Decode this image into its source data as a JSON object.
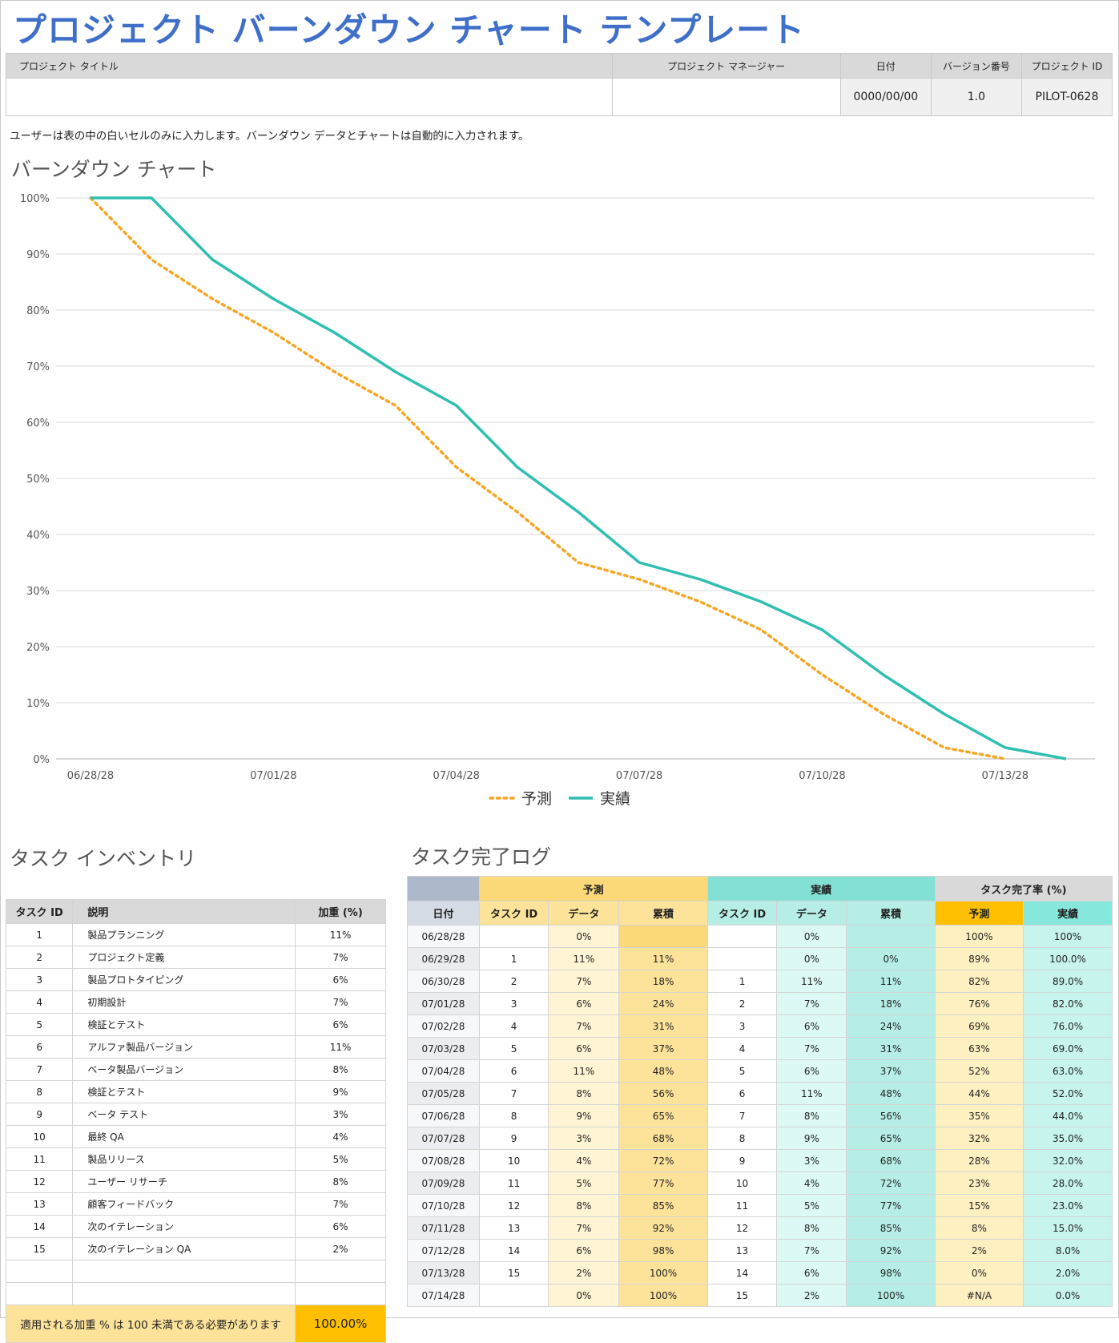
{
  "title": "プロジェクト バーンダウン チャート テンプレート",
  "info": {
    "headers": [
      "プロジェクト タイトル",
      "プロジェクト マネージャー",
      "日付",
      "バージョン番号",
      "プロジェクト ID"
    ],
    "values": [
      "",
      "",
      "0000/00/00",
      "1.0",
      "PILOT-0628"
    ]
  },
  "note": "ユーザーは表の中の白いセルのみに入力します。バーンダウン データとチャートは自動的に入力されます。",
  "chart_section": "バーンダウン チャート",
  "chart_data": {
    "type": "line",
    "x": [
      "06/28/28",
      "06/29/28",
      "06/30/28",
      "07/01/28",
      "07/02/28",
      "07/03/28",
      "07/04/28",
      "07/05/28",
      "07/06/28",
      "07/07/28",
      "07/08/28",
      "07/09/28",
      "07/10/28",
      "07/11/28",
      "07/12/28",
      "07/13/28",
      "07/14/28"
    ],
    "x_tick_labels": [
      "06/28/28",
      "07/01/28",
      "07/04/28",
      "07/07/28",
      "07/10/28",
      "07/13/28"
    ],
    "y_tick_labels": [
      "0%",
      "10%",
      "20%",
      "30%",
      "40%",
      "50%",
      "60%",
      "70%",
      "80%",
      "90%",
      "100%"
    ],
    "ylim": [
      0,
      100
    ],
    "grid": true,
    "legend_position": "bottom",
    "series": [
      {
        "name": "予測",
        "style": "dotted",
        "color": "#f5a623",
        "values": [
          100,
          89,
          82,
          76,
          69,
          63,
          52,
          44,
          35,
          32,
          28,
          23,
          15,
          8,
          2,
          0,
          null
        ]
      },
      {
        "name": "実績",
        "style": "solid",
        "color": "#2fbfb0",
        "values": [
          100,
          100,
          89,
          82,
          76,
          69,
          63,
          52,
          44,
          35,
          32,
          28,
          23,
          15,
          8,
          2,
          0
        ]
      }
    ]
  },
  "inventory": {
    "section": "タスク インベントリ",
    "headers": [
      "タスク ID",
      "説明",
      "加重 (%)"
    ],
    "rows": [
      [
        "1",
        "製品プランニング",
        "11%"
      ],
      [
        "2",
        "プロジェクト定義",
        "7%"
      ],
      [
        "3",
        "製品プロトタイピング",
        "6%"
      ],
      [
        "4",
        "初期設計",
        "7%"
      ],
      [
        "5",
        "検証とテスト",
        "6%"
      ],
      [
        "6",
        "アルファ製品バージョン",
        "11%"
      ],
      [
        "7",
        "ベータ製品バージョン",
        "8%"
      ],
      [
        "8",
        "検証とテスト",
        "9%"
      ],
      [
        "9",
        "ベータ テスト",
        "3%"
      ],
      [
        "10",
        "最終 QA",
        "4%"
      ],
      [
        "11",
        "製品リリース",
        "5%"
      ],
      [
        "12",
        "ユーザー リサーチ",
        "8%"
      ],
      [
        "13",
        "顧客フィードバック",
        "7%"
      ],
      [
        "14",
        "次のイテレーション",
        "6%"
      ],
      [
        "15",
        "次のイテレーション QA",
        "2%"
      ],
      [
        "",
        "",
        ""
      ],
      [
        "",
        "",
        ""
      ]
    ],
    "footer_label": "適用される加重 % は 100 未満である必要があります",
    "footer_value": "100.00%"
  },
  "log": {
    "section": "タスク完了ログ",
    "groups": [
      "予測",
      "実績",
      "タスク完了率 (%)"
    ],
    "headers": [
      "日付",
      "タスク ID",
      "データ",
      "累積",
      "タスク ID",
      "データ",
      "累積",
      "予測",
      "実績"
    ],
    "rows": [
      [
        "06/28/28",
        "",
        "0%",
        "",
        "",
        "0%",
        "",
        "100%",
        "100%"
      ],
      [
        "06/29/28",
        "1",
        "11%",
        "11%",
        "",
        "0%",
        "0%",
        "89%",
        "100.0%"
      ],
      [
        "06/30/28",
        "2",
        "7%",
        "18%",
        "1",
        "11%",
        "11%",
        "82%",
        "89.0%"
      ],
      [
        "07/01/28",
        "3",
        "6%",
        "24%",
        "2",
        "7%",
        "18%",
        "76%",
        "82.0%"
      ],
      [
        "07/02/28",
        "4",
        "7%",
        "31%",
        "3",
        "6%",
        "24%",
        "69%",
        "76.0%"
      ],
      [
        "07/03/28",
        "5",
        "6%",
        "37%",
        "4",
        "7%",
        "31%",
        "63%",
        "69.0%"
      ],
      [
        "07/04/28",
        "6",
        "11%",
        "48%",
        "5",
        "6%",
        "37%",
        "52%",
        "63.0%"
      ],
      [
        "07/05/28",
        "7",
        "8%",
        "56%",
        "6",
        "11%",
        "48%",
        "44%",
        "52.0%"
      ],
      [
        "07/06/28",
        "8",
        "9%",
        "65%",
        "7",
        "8%",
        "56%",
        "35%",
        "44.0%"
      ],
      [
        "07/07/28",
        "9",
        "3%",
        "68%",
        "8",
        "9%",
        "65%",
        "32%",
        "35.0%"
      ],
      [
        "07/08/28",
        "10",
        "4%",
        "72%",
        "9",
        "3%",
        "68%",
        "28%",
        "32.0%"
      ],
      [
        "07/09/28",
        "11",
        "5%",
        "77%",
        "10",
        "4%",
        "72%",
        "23%",
        "28.0%"
      ],
      [
        "07/10/28",
        "12",
        "8%",
        "85%",
        "11",
        "5%",
        "77%",
        "15%",
        "23.0%"
      ],
      [
        "07/11/28",
        "13",
        "7%",
        "92%",
        "12",
        "8%",
        "85%",
        "8%",
        "15.0%"
      ],
      [
        "07/12/28",
        "14",
        "6%",
        "98%",
        "13",
        "7%",
        "92%",
        "2%",
        "8.0%"
      ],
      [
        "07/13/28",
        "15",
        "2%",
        "100%",
        "14",
        "6%",
        "98%",
        "0%",
        "2.0%"
      ],
      [
        "07/14/28",
        "",
        "0%",
        "100%",
        "15",
        "2%",
        "100%",
        "#N/A",
        "0.0%"
      ]
    ]
  },
  "colors": {
    "title": "#3f6fc8",
    "forecast": "#f5a623",
    "actual": "#2fbfb0",
    "header_gray": "#d9d9d9",
    "forecast_group": "#fcd978",
    "actual_group": "#82e0d4",
    "rate_forecast": "#fdbf00",
    "rate_actual": "#86e8dc"
  }
}
